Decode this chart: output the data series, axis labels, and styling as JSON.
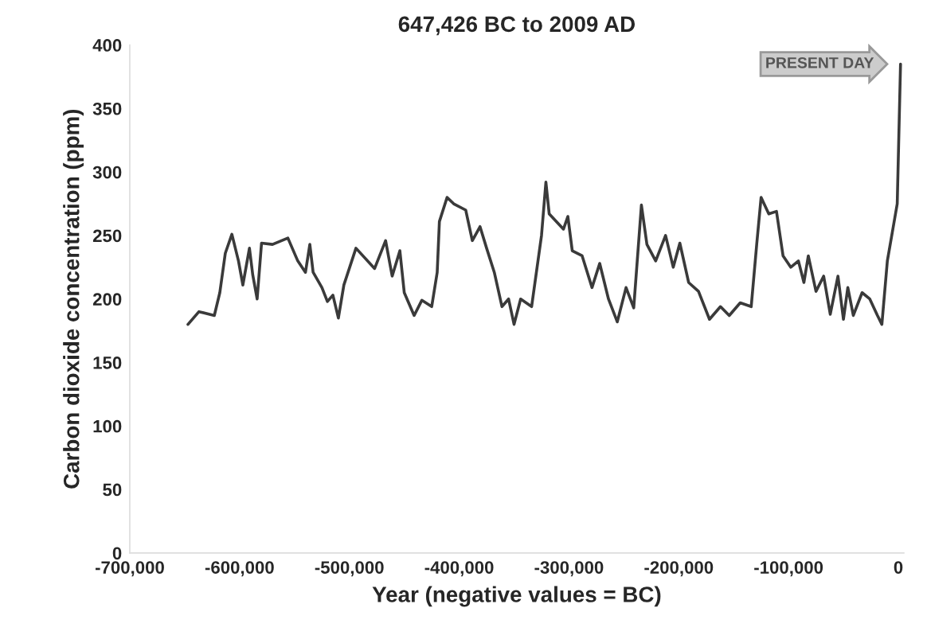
{
  "chart_data": {
    "type": "line",
    "title": "647,426 BC to 2009 AD",
    "xlabel": "Year (negative values = BC)",
    "ylabel": "Carbon dioxide concentration (ppm)",
    "series": [
      {
        "color": "#3a3a3a",
        "x": [
          -647000,
          -637000,
          -623000,
          -618000,
          -613000,
          -607000,
          -601000,
          -597000,
          -591000,
          -588000,
          -584000,
          -580000,
          -570000,
          -556000,
          -547000,
          -540000,
          -536000,
          -533000,
          -525000,
          -520000,
          -515000,
          -510000,
          -505000,
          -494000,
          -477000,
          -467000,
          -461000,
          -454000,
          -450000,
          -441000,
          -434000,
          -425000,
          -420000,
          -418000,
          -411000,
          -405000,
          -394000,
          -388000,
          -381000,
          -375000,
          -368000,
          -361000,
          -355000,
          -350000,
          -344000,
          -334000,
          -325000,
          -321000,
          -318000,
          -305000,
          -301000,
          -297000,
          -288000,
          -279000,
          -272000,
          -264000,
          -256000,
          -248000,
          -241000,
          -234000,
          -229000,
          -221000,
          -212000,
          -205000,
          -199000,
          -191000,
          -182000,
          -172000,
          -162000,
          -154000,
          -144000,
          -134000,
          -129000,
          -125000,
          -118000,
          -111000,
          -105000,
          -98000,
          -91000,
          -86000,
          -82000,
          -75000,
          -68000,
          -62000,
          -55000,
          -50000,
          -46000,
          -41000,
          -33000,
          -26000,
          -19000,
          -15000,
          -10000,
          -5000,
          -1000,
          2009
        ],
        "values": [
          180,
          190,
          187,
          205,
          236,
          251,
          230,
          211,
          240,
          219,
          200,
          244,
          243,
          248,
          230,
          221,
          243,
          221,
          209,
          198,
          203,
          185,
          211,
          240,
          224,
          246,
          218,
          238,
          205,
          187,
          199,
          194,
          221,
          261,
          280,
          275,
          270,
          246,
          257,
          240,
          221,
          194,
          200,
          180,
          200,
          194,
          250,
          292,
          267,
          255,
          265,
          238,
          234,
          209,
          228,
          200,
          182,
          209,
          193,
          274,
          243,
          230,
          250,
          225,
          244,
          213,
          206,
          184,
          194,
          187,
          197,
          194,
          243,
          280,
          267,
          269,
          234,
          225,
          230,
          213,
          234,
          206,
          218,
          188,
          218,
          184,
          209,
          187,
          205,
          200,
          187,
          180,
          230,
          255,
          275,
          385
        ]
      }
    ],
    "xlim": [
      -700000,
      5000
    ],
    "xticks": [
      {
        "value": -700000,
        "label": "-700,000"
      },
      {
        "value": -600000,
        "label": "-600,000"
      },
      {
        "value": -500000,
        "label": "-500,000"
      },
      {
        "value": -400000,
        "label": "-400,000"
      },
      {
        "value": -300000,
        "label": "-300,000"
      },
      {
        "value": -200000,
        "label": "-200,000"
      },
      {
        "value": -100000,
        "label": "-100,000"
      },
      0
    ],
    "ylim": [
      0,
      400
    ],
    "yticks": [
      0,
      50,
      100,
      150,
      200,
      250,
      300,
      350,
      400
    ],
    "grid": false,
    "legend": false,
    "marker": "none",
    "line_style": "solid",
    "annotations": [
      {
        "text": "PRESENT DAY",
        "x": 2009,
        "y": 385
      }
    ]
  }
}
